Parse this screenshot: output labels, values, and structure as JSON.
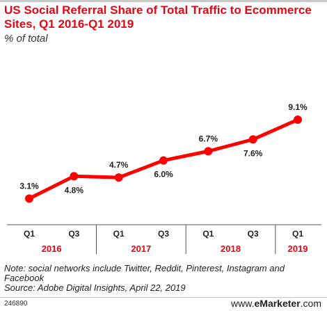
{
  "header": {
    "title": "US Social Referral Share of Total Traffic to Ecommerce Sites, Q1 2016-Q1 2019",
    "subtitle": "% of total"
  },
  "chart_data": {
    "type": "line",
    "x": [
      "Q1",
      "Q3",
      "Q1",
      "Q3",
      "Q1",
      "Q3",
      "Q1"
    ],
    "year_groups": [
      {
        "label": "2016",
        "span": [
          0,
          1
        ]
      },
      {
        "label": "2017",
        "span": [
          2,
          3
        ]
      },
      {
        "label": "2018",
        "span": [
          4,
          5
        ]
      },
      {
        "label": "2019",
        "span": [
          6,
          6
        ]
      }
    ],
    "series": [
      {
        "values": [
          3.1,
          4.8,
          4.7,
          6.0,
          6.7,
          7.6,
          9.1
        ],
        "labels": [
          "3.1%",
          "4.8%",
          "4.7%",
          "6.0%",
          "6.7%",
          "7.6%",
          "9.1%"
        ],
        "label_position": [
          "above",
          "below",
          "above",
          "below",
          "above",
          "below",
          "above"
        ],
        "color": "#ff0000"
      }
    ],
    "ylim": [
      0,
      10
    ],
    "grid": false,
    "colors": {
      "line": "#ff0000",
      "year_label": "#e30613",
      "axis": "#555555"
    }
  },
  "footer": {
    "note": "Note: social networks include Twitter, Reddit, Pinterest, Instagram and Facebook",
    "source": "Source: Adobe Digital Insights, April 22, 2019",
    "chart_id": "246890",
    "brand_prefix": "www.",
    "brand_name": "eMarketer",
    "brand_suffix": ".com"
  }
}
